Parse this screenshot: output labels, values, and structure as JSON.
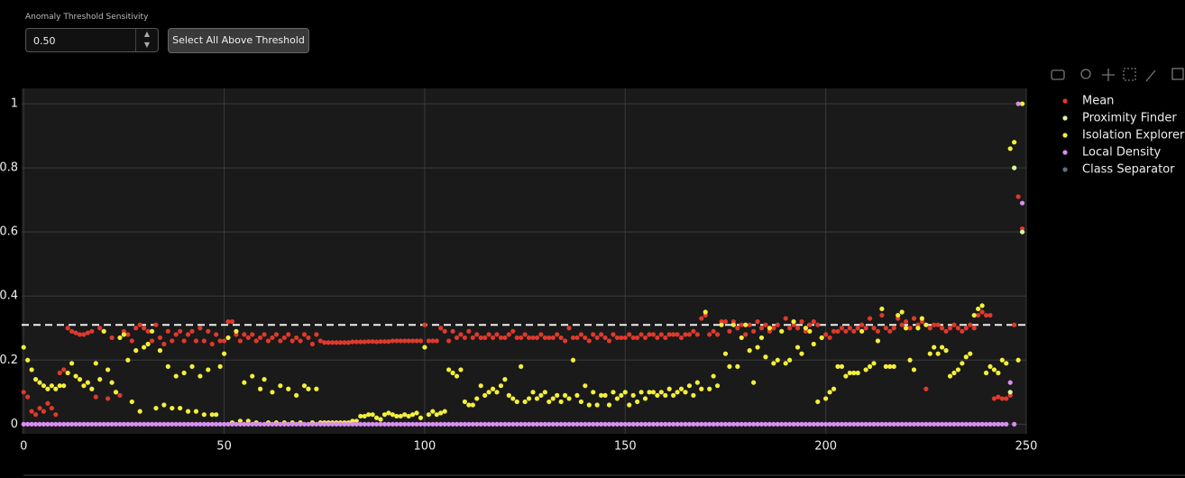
{
  "controls": {
    "input_label": "Anomaly Threshold Sensitivity",
    "input_value": "0.50",
    "button": "Select All Above Threshold"
  },
  "chart_data": {
    "type": "scatter",
    "x": [
      0,
      1,
      2,
      3,
      4,
      5,
      6,
      7,
      8,
      9,
      10,
      11,
      12,
      13,
      14,
      15,
      16,
      17,
      18,
      19,
      20,
      21,
      22,
      23,
      24,
      25,
      26,
      27,
      28,
      29,
      30,
      31,
      32,
      33,
      34,
      35,
      36,
      37,
      38,
      39,
      40,
      41,
      42,
      43,
      44,
      45,
      46,
      47,
      48,
      49,
      50,
      51,
      52,
      53,
      54,
      55,
      56,
      57,
      58,
      59,
      60,
      61,
      62,
      63,
      64,
      65,
      66,
      67,
      68,
      69,
      70,
      71,
      72,
      73,
      74,
      75,
      76,
      77,
      78,
      79,
      80,
      81,
      82,
      83,
      84,
      85,
      86,
      87,
      88,
      89,
      90,
      91,
      92,
      93,
      94,
      95,
      96,
      97,
      98,
      99,
      100,
      101,
      102,
      103,
      104,
      105,
      106,
      107,
      108,
      109,
      110,
      111,
      112,
      113,
      114,
      115,
      116,
      117,
      118,
      119,
      120,
      121,
      122,
      123,
      124,
      125,
      126,
      127,
      128,
      129,
      130,
      131,
      132,
      133,
      134,
      135,
      136,
      137,
      138,
      139,
      140,
      141,
      142,
      143,
      144,
      145,
      146,
      147,
      148,
      149,
      150,
      151,
      152,
      153,
      154,
      155,
      156,
      157,
      158,
      159,
      160,
      161,
      162,
      163,
      164,
      165,
      166,
      167,
      168,
      169,
      170,
      171,
      172,
      173,
      174,
      175,
      176,
      177,
      178,
      179,
      180,
      181,
      182,
      183,
      184,
      185,
      186,
      187,
      188,
      189,
      190,
      191,
      192,
      193,
      194,
      195,
      196,
      197,
      198,
      199,
      200,
      201,
      202,
      203,
      204,
      205,
      206,
      207,
      208,
      209,
      210,
      211,
      212,
      213,
      214,
      215,
      216,
      217,
      218,
      219,
      220,
      221,
      222,
      223,
      224,
      225,
      226,
      227,
      228,
      229,
      230,
      231,
      232,
      233,
      234,
      235,
      236,
      237,
      238,
      239,
      240,
      241,
      242,
      243,
      244,
      245,
      246,
      247,
      248,
      249
    ],
    "series": [
      {
        "name": "Mean",
        "color": "#e0392b",
        "values": [
          0.1,
          0.085,
          0.04,
          0.03,
          0.05,
          0.04,
          0.065,
          0.05,
          0.03,
          0.16,
          0.17,
          0.3,
          0.29,
          0.285,
          0.28,
          0.28,
          0.285,
          0.29,
          0.085,
          0.3,
          0.29,
          0.08,
          0.27,
          0.1,
          0.09,
          0.29,
          0.28,
          0.26,
          0.3,
          0.31,
          0.3,
          0.29,
          0.26,
          0.31,
          0.27,
          0.25,
          0.29,
          0.26,
          0.28,
          0.29,
          0.26,
          0.28,
          0.29,
          0.26,
          0.3,
          0.26,
          0.29,
          0.25,
          0.28,
          0.26,
          0.26,
          0.32,
          0.32,
          0.28,
          0.26,
          0.28,
          0.27,
          0.28,
          0.26,
          0.27,
          0.28,
          0.26,
          0.27,
          0.28,
          0.26,
          0.27,
          0.28,
          0.26,
          0.27,
          0.26,
          0.28,
          0.27,
          0.25,
          0.28,
          0.26,
          0.255,
          0.255,
          0.255,
          0.255,
          0.255,
          0.255,
          0.255,
          0.257,
          0.257,
          0.257,
          0.257,
          0.258,
          0.258,
          0.257,
          0.258,
          0.258,
          0.258,
          0.26,
          0.26,
          0.26,
          0.26,
          0.26,
          0.26,
          0.26,
          0.26,
          0.31,
          0.26,
          0.26,
          0.26,
          0.3,
          0.29,
          0.26,
          0.29,
          0.27,
          0.28,
          0.27,
          0.29,
          0.27,
          0.28,
          0.27,
          0.27,
          0.28,
          0.27,
          0.28,
          0.27,
          0.27,
          0.28,
          0.29,
          0.27,
          0.27,
          0.28,
          0.27,
          0.27,
          0.27,
          0.28,
          0.27,
          0.27,
          0.27,
          0.28,
          0.27,
          0.26,
          0.3,
          0.27,
          0.27,
          0.28,
          0.27,
          0.26,
          0.28,
          0.27,
          0.28,
          0.27,
          0.26,
          0.28,
          0.27,
          0.27,
          0.27,
          0.28,
          0.27,
          0.27,
          0.28,
          0.27,
          0.28,
          0.28,
          0.27,
          0.28,
          0.27,
          0.28,
          0.28,
          0.28,
          0.27,
          0.28,
          0.28,
          0.29,
          0.28,
          0.33,
          0.34,
          0.28,
          0.29,
          0.28,
          0.32,
          0.32,
          0.29,
          0.32,
          0.3,
          0.31,
          0.28,
          0.31,
          0.29,
          0.32,
          0.3,
          0.31,
          0.29,
          0.3,
          0.31,
          0.29,
          0.33,
          0.3,
          0.31,
          0.3,
          0.32,
          0.29,
          0.31,
          0.32,
          0.31,
          0.27,
          0.28,
          0.27,
          0.29,
          0.29,
          0.3,
          0.29,
          0.3,
          0.29,
          0.3,
          0.31,
          0.3,
          0.33,
          0.3,
          0.29,
          0.34,
          0.3,
          0.29,
          0.3,
          0.33,
          0.31,
          0.32,
          0.3,
          0.33,
          0.31,
          0.32,
          0.11,
          0.3,
          0.31,
          0.31,
          0.3,
          0.29,
          0.3,
          0.31,
          0.3,
          0.29,
          0.3,
          0.31,
          0.3,
          0.34,
          0.35,
          0.34,
          0.34,
          0.08,
          0.085,
          0.08,
          0.08,
          0.09,
          0.31,
          0.71,
          0.61
        ]
      },
      {
        "name": "Proximity Finder",
        "color": "#d6f59c",
        "x": [
          246,
          247,
          249
        ],
        "values": [
          0.1,
          0.8,
          0.6
        ]
      },
      {
        "name": "Isolation Explorer",
        "color": "#f4f03a",
        "values": [
          0.24,
          0.2,
          0.17,
          0.14,
          0.13,
          0.12,
          0.11,
          0.12,
          0.11,
          0.12,
          0.12,
          0.16,
          0.19,
          0.15,
          0.14,
          0.12,
          0.13,
          0.11,
          0.19,
          0.14,
          0.29,
          0.17,
          0.13,
          0.1,
          0.27,
          0.28,
          0.2,
          0.07,
          0.23,
          0.04,
          0.24,
          0.25,
          0.29,
          0.05,
          0.23,
          0.06,
          0.18,
          0.05,
          0.15,
          0.05,
          0.16,
          0.04,
          0.18,
          0.04,
          0.15,
          0.03,
          0.17,
          0.03,
          0.03,
          0.18,
          0.22,
          0.27,
          0.005,
          0.29,
          0.01,
          0.13,
          0.01,
          0.15,
          0.005,
          0.11,
          0.14,
          0.005,
          0.1,
          0.005,
          0.12,
          0.005,
          0.11,
          0.005,
          0.09,
          0.005,
          0.12,
          0.11,
          0.005,
          0.11,
          0.005,
          0.005,
          0.005,
          0.005,
          0.005,
          0.005,
          0.005,
          0.005,
          0.01,
          0.01,
          0.025,
          0.025,
          0.03,
          0.03,
          0.02,
          0.015,
          0.03,
          0.035,
          0.03,
          0.025,
          0.025,
          0.03,
          0.025,
          0.03,
          0.035,
          0.02,
          0.24,
          0.03,
          0.04,
          0.03,
          0.035,
          0.04,
          0.17,
          0.16,
          0.15,
          0.17,
          0.07,
          0.06,
          0.06,
          0.08,
          0.12,
          0.09,
          0.1,
          0.11,
          0.1,
          0.12,
          0.14,
          0.09,
          0.08,
          0.07,
          0.18,
          0.07,
          0.08,
          0.1,
          0.08,
          0.09,
          0.1,
          0.07,
          0.08,
          0.09,
          0.07,
          0.09,
          0.08,
          0.2,
          0.09,
          0.07,
          0.12,
          0.06,
          0.1,
          0.06,
          0.09,
          0.09,
          0.06,
          0.1,
          0.08,
          0.09,
          0.1,
          0.06,
          0.09,
          0.07,
          0.1,
          0.08,
          0.1,
          0.1,
          0.09,
          0.1,
          0.09,
          0.11,
          0.09,
          0.1,
          0.11,
          0.1,
          0.12,
          0.09,
          0.13,
          0.11,
          0.35,
          0.11,
          0.15,
          0.12,
          0.31,
          0.22,
          0.18,
          0.31,
          0.18,
          0.27,
          0.31,
          0.23,
          0.13,
          0.24,
          0.27,
          0.21,
          0.3,
          0.19,
          0.2,
          0.29,
          0.19,
          0.2,
          0.32,
          0.24,
          0.22,
          0.3,
          0.29,
          0.25,
          0.07,
          0.27,
          0.08,
          0.1,
          0.11,
          0.18,
          0.18,
          0.15,
          0.16,
          0.16,
          0.16,
          0.29,
          0.17,
          0.18,
          0.19,
          0.26,
          0.36,
          0.18,
          0.18,
          0.18,
          0.34,
          0.35,
          0.3,
          0.2,
          0.17,
          0.3,
          0.33,
          0.31,
          0.22,
          0.24,
          0.22,
          0.24,
          0.23,
          0.15,
          0.16,
          0.17,
          0.19,
          0.21,
          0.22,
          0.34,
          0.36,
          0.37,
          0.16,
          0.18,
          0.17,
          0.16,
          0.2,
          0.19,
          0.86,
          0.88,
          0.2,
          1.0
        ]
      },
      {
        "name": "Local Density",
        "color": "#d98ef2",
        "values": [
          0,
          0,
          0,
          0,
          0,
          0,
          0,
          0,
          0,
          0,
          0,
          0,
          0,
          0,
          0,
          0,
          0,
          0,
          0,
          0,
          0,
          0,
          0,
          0,
          0,
          0,
          0,
          0,
          0,
          0,
          0,
          0,
          0,
          0,
          0,
          0,
          0,
          0,
          0,
          0,
          0,
          0,
          0,
          0,
          0,
          0,
          0,
          0,
          0,
          0,
          0,
          0,
          0,
          0,
          0,
          0,
          0,
          0,
          0,
          0,
          0,
          0,
          0,
          0,
          0,
          0,
          0,
          0,
          0,
          0,
          0,
          0,
          0,
          0,
          0,
          0,
          0,
          0,
          0,
          0,
          0,
          0,
          0,
          0,
          0,
          0,
          0,
          0,
          0,
          0,
          0,
          0,
          0,
          0,
          0,
          0,
          0,
          0,
          0,
          0,
          0,
          0,
          0,
          0,
          0,
          0,
          0,
          0,
          0,
          0,
          0,
          0,
          0,
          0,
          0,
          0,
          0,
          0,
          0,
          0,
          0,
          0,
          0,
          0,
          0,
          0,
          0,
          0,
          0,
          0,
          0,
          0,
          0,
          0,
          0,
          0,
          0,
          0,
          0,
          0,
          0,
          0,
          0,
          0,
          0,
          0,
          0,
          0,
          0,
          0,
          0,
          0,
          0,
          0,
          0,
          0,
          0,
          0,
          0,
          0,
          0,
          0,
          0,
          0,
          0,
          0,
          0,
          0,
          0,
          0,
          0,
          0,
          0,
          0,
          0,
          0,
          0,
          0,
          0,
          0,
          0,
          0,
          0,
          0,
          0,
          0,
          0,
          0,
          0,
          0,
          0,
          0,
          0,
          0,
          0,
          0,
          0,
          0,
          0,
          0,
          0,
          0,
          0,
          0,
          0,
          0,
          0,
          0,
          0,
          0,
          0,
          0,
          0,
          0,
          0,
          0,
          0,
          0,
          0,
          0,
          0,
          0,
          0,
          0,
          0,
          0,
          0,
          0,
          0,
          0,
          0,
          0,
          0,
          0,
          0,
          0,
          0,
          0,
          0,
          0,
          0,
          0,
          0,
          0,
          0,
          0,
          0.13,
          0,
          1.0,
          0.69
        ]
      },
      {
        "name": "Class Separator",
        "color": "#5f7080",
        "hidden": true,
        "values": []
      }
    ],
    "threshold_line": 0.31,
    "xlim": [
      -0.5,
      250
    ],
    "ylim": [
      -0.03,
      1.048
    ],
    "xticks": [
      0,
      50,
      100,
      150,
      200,
      250
    ],
    "yticks": [
      0,
      0.2,
      0.4,
      0.6,
      0.8,
      1
    ],
    "grid": true,
    "legend": "right"
  }
}
